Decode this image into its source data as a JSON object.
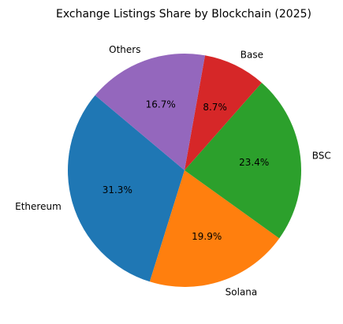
{
  "chart_data": {
    "type": "pie",
    "title": "Exchange Listings Share by Blockchain (2025)",
    "labels": [
      "Ethereum",
      "Solana",
      "BSC",
      "Base",
      "Others"
    ],
    "values": [
      31.3,
      19.9,
      23.4,
      8.7,
      16.7
    ],
    "percent_labels": [
      "31.3%",
      "19.9%",
      "23.4%",
      "8.7%",
      "16.7%"
    ],
    "colors": [
      "#1f77b4",
      "#ff7f0e",
      "#2ca02c",
      "#d62728",
      "#9467bd"
    ],
    "start_angle_deg": 140,
    "direction": "counterclockwise",
    "legend": "none"
  }
}
